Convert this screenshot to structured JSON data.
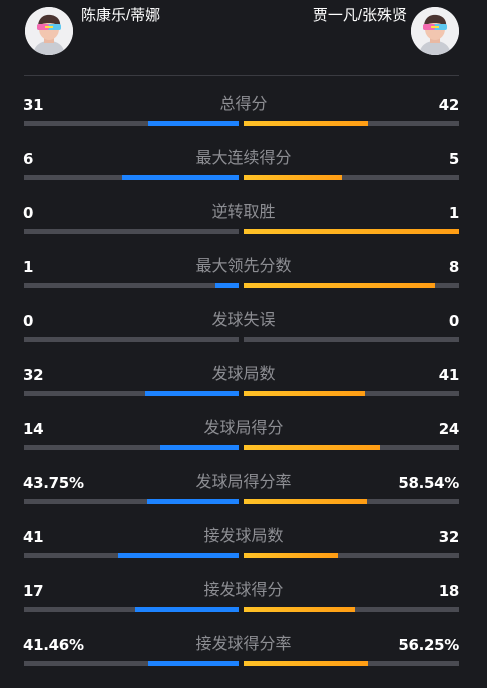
{
  "players": {
    "left": {
      "name": "陈康乐/蒂娜",
      "avatar_icon": "player-avatar-icon"
    },
    "right": {
      "name": "贾一凡/张殊贤",
      "avatar_icon": "player-avatar-icon"
    }
  },
  "colors": {
    "background": "#1a1b1f",
    "left_bar": "#1d83ff",
    "right_bar": "#ffae1c",
    "track": "#4a4b52",
    "label": "#8d8e93"
  },
  "stats": [
    {
      "label": "总得分",
      "left": "31",
      "right": "42",
      "left_fill": 0.425,
      "right_fill": 0.575
    },
    {
      "label": "最大连续得分",
      "left": "6",
      "right": "5",
      "left_fill": 0.545,
      "right_fill": 0.455
    },
    {
      "label": "逆转取胜",
      "left": "0",
      "right": "1",
      "left_fill": 0.0,
      "right_fill": 1.0
    },
    {
      "label": "最大领先分数",
      "left": "1",
      "right": "8",
      "left_fill": 0.111,
      "right_fill": 0.889
    },
    {
      "label": "发球失误",
      "left": "0",
      "right": "0",
      "left_fill": 0.0,
      "right_fill": 0.0
    },
    {
      "label": "发球局数",
      "left": "32",
      "right": "41",
      "left_fill": 0.438,
      "right_fill": 0.562
    },
    {
      "label": "发球局得分",
      "left": "14",
      "right": "24",
      "left_fill": 0.368,
      "right_fill": 0.632
    },
    {
      "label": "发球局得分率",
      "left": "43.75%",
      "right": "58.54%",
      "left_fill": 0.428,
      "right_fill": 0.572
    },
    {
      "label": "接发球局数",
      "left": "41",
      "right": "32",
      "left_fill": 0.562,
      "right_fill": 0.438
    },
    {
      "label": "接发球得分",
      "left": "17",
      "right": "18",
      "left_fill": 0.486,
      "right_fill": 0.514
    },
    {
      "label": "接发球得分率",
      "left": "41.46%",
      "right": "56.25%",
      "left_fill": 0.424,
      "right_fill": 0.576
    }
  ]
}
